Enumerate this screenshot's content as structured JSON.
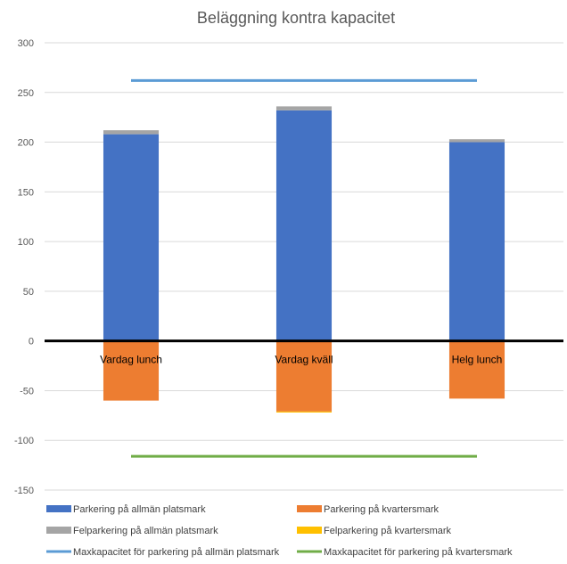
{
  "chart_data": {
    "type": "bar",
    "stacked": true,
    "title": "Beläggning kontra kapacitet",
    "categories": [
      "Vardag lunch",
      "Vardag kväll",
      "Helg lunch"
    ],
    "ylim": [
      -150,
      300
    ],
    "yticks": [
      300,
      250,
      200,
      150,
      100,
      50,
      0,
      -50,
      -100,
      -150
    ],
    "grid": true,
    "legend_position": "bottom",
    "series": [
      {
        "name": "Parkering på allmän platsmark",
        "kind": "bar",
        "color": "#4472C4",
        "values": [
          208,
          232,
          200
        ]
      },
      {
        "name": "Parkering på kvartersmark",
        "kind": "bar",
        "color": "#ED7D31",
        "values": [
          -60,
          -71,
          -58
        ]
      },
      {
        "name": "Felparkering på allmän platsmark",
        "kind": "bar",
        "color": "#A5A5A5",
        "values": [
          4,
          4,
          3
        ]
      },
      {
        "name": "Felparkering på kvartersmark",
        "kind": "bar",
        "color": "#FFC000",
        "values": [
          0,
          -1,
          0
        ]
      },
      {
        "name": "Maxkapacitet för parkering på allmän platsmark",
        "kind": "line",
        "color": "#5B9BD5",
        "values": [
          262,
          262,
          262
        ]
      },
      {
        "name": "Maxkapacitet för parkering på kvartersmark",
        "kind": "line",
        "color": "#70AD47",
        "values": [
          -116,
          -116,
          -116
        ]
      }
    ]
  }
}
